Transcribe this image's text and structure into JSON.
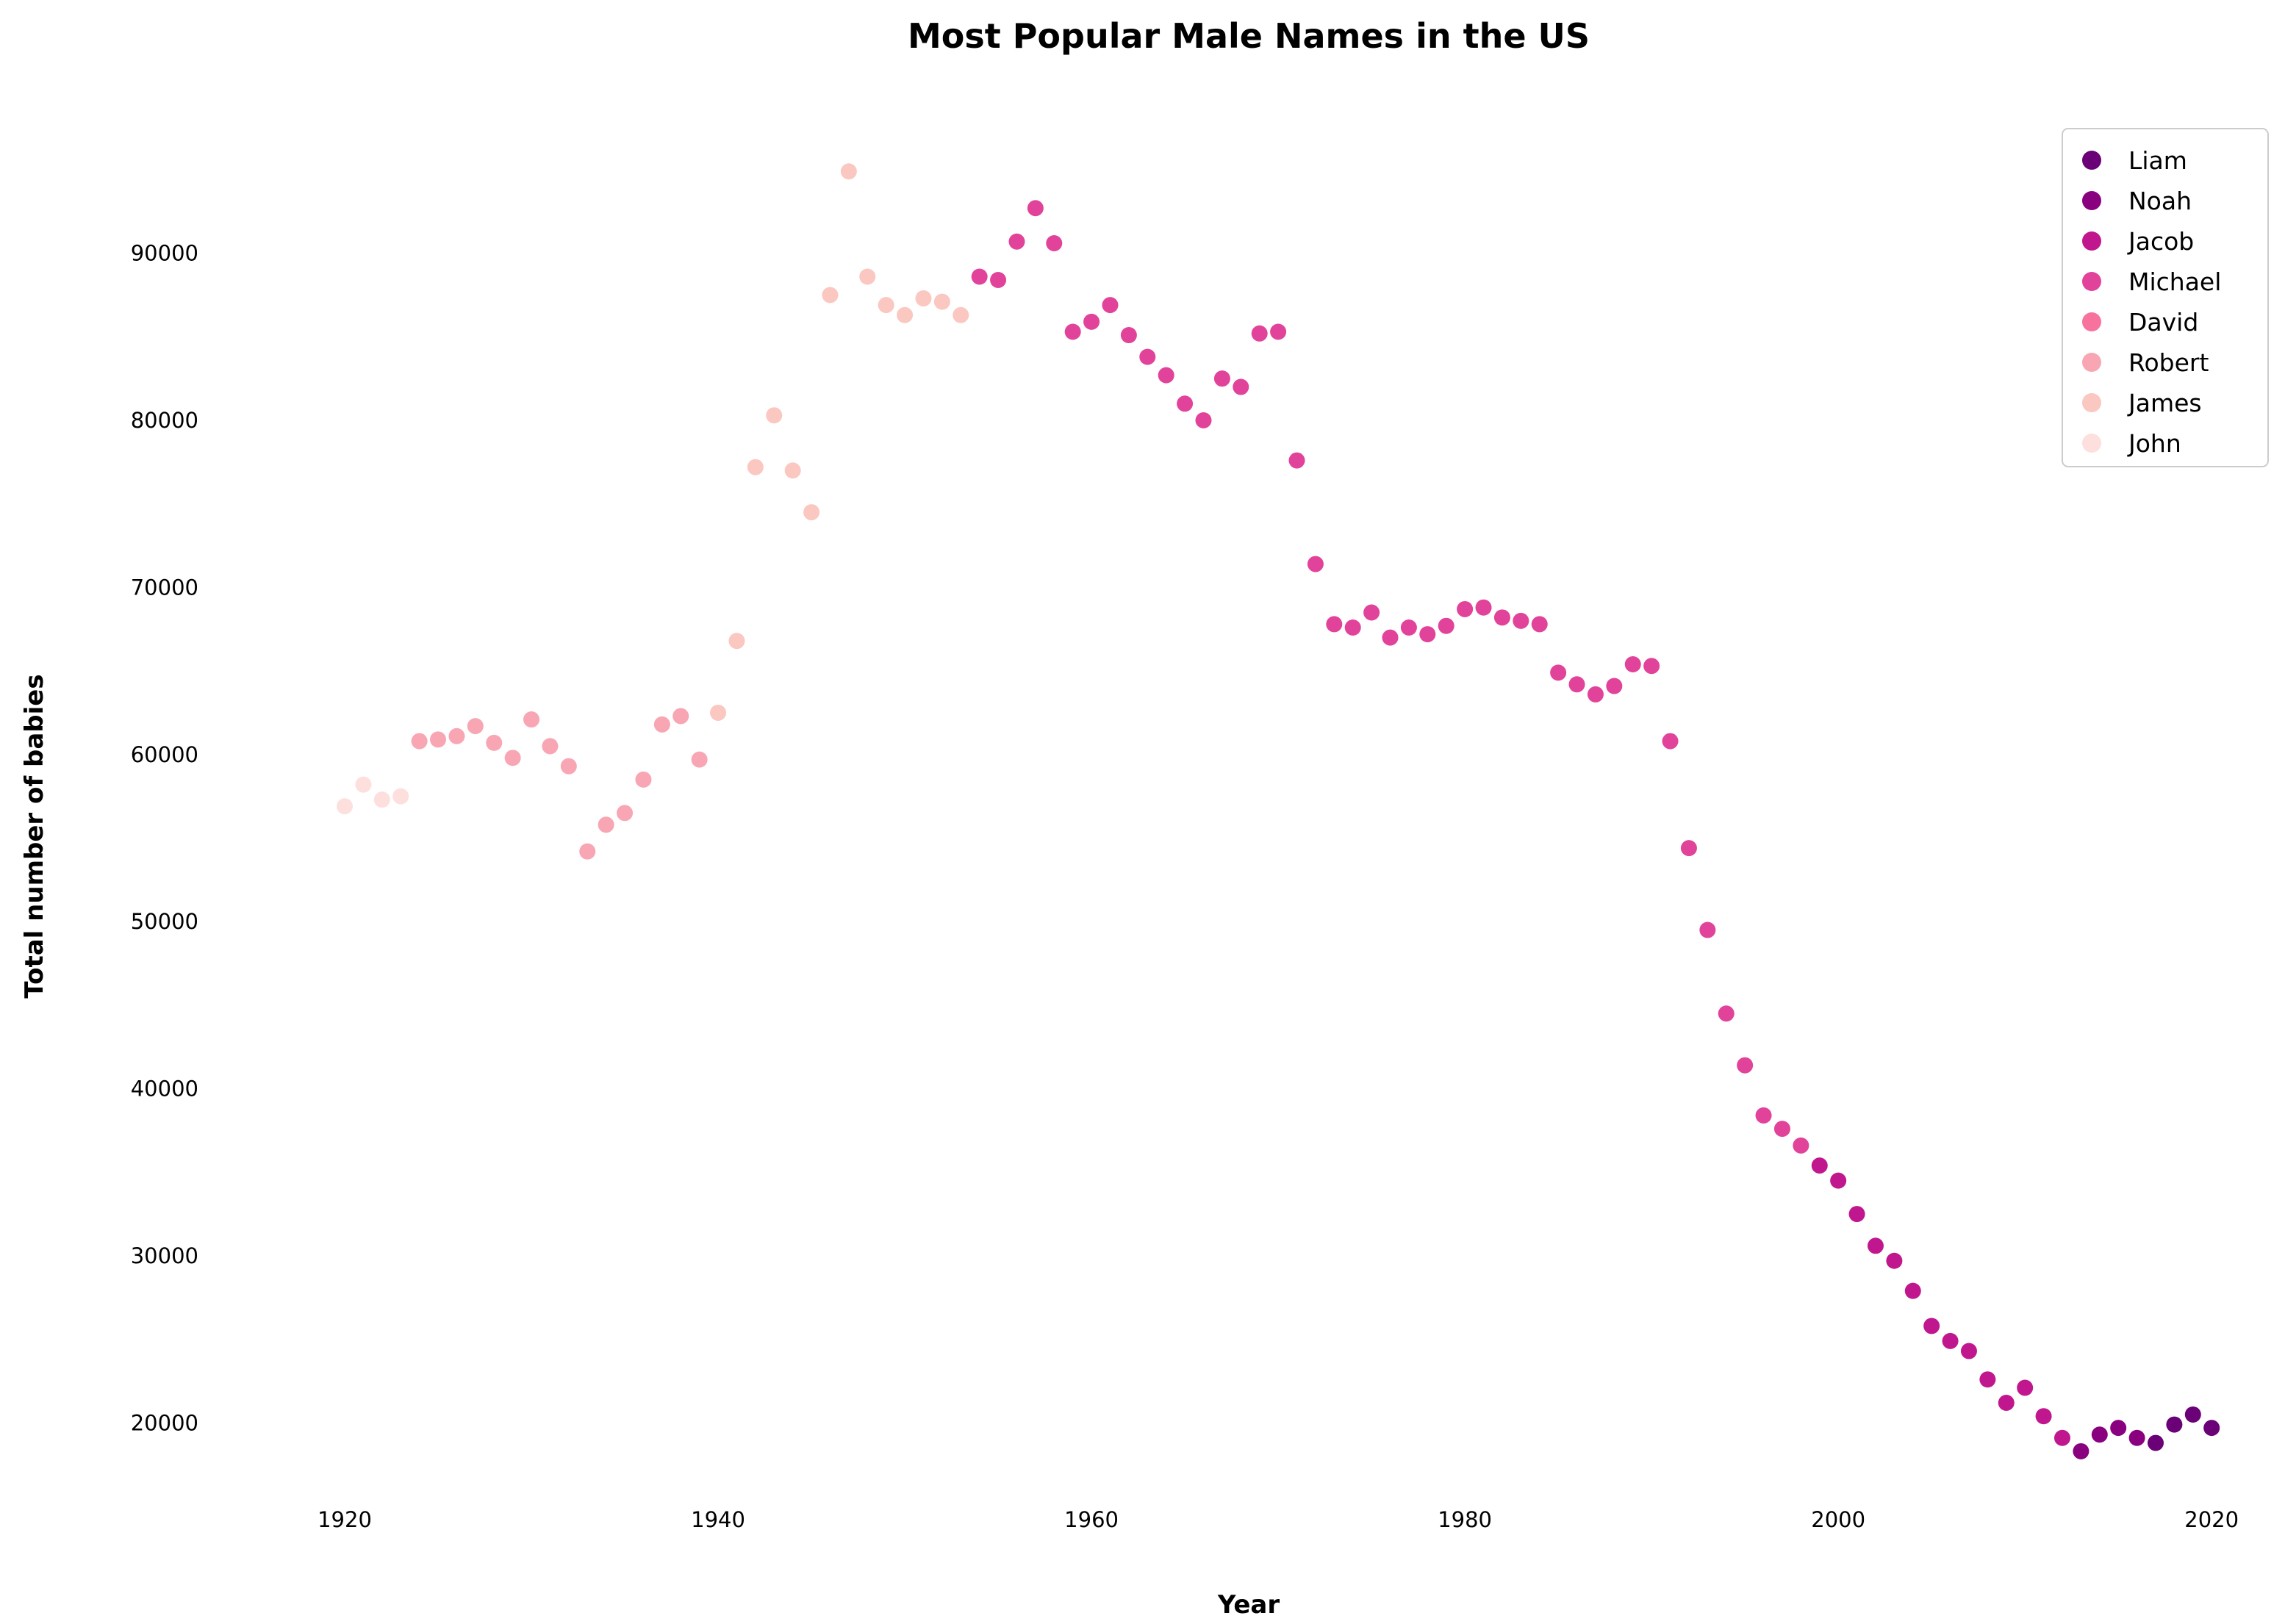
{
  "chart_data": {
    "type": "scatter",
    "title": "Most Popular Male Names in the US",
    "xlabel": "Year",
    "ylabel": "Total number of babies",
    "xlim": [
      1915,
      2022
    ],
    "ylim": [
      15000,
      99000
    ],
    "x_ticks": [
      1920,
      1940,
      1960,
      1980,
      2000,
      2020
    ],
    "y_ticks": [
      20000,
      30000,
      40000,
      50000,
      60000,
      70000,
      80000,
      90000
    ],
    "grid": false,
    "legend_position": "top-right",
    "series": [
      {
        "name": "Liam",
        "color": "#6a0177",
        "x": [
          2017,
          2018,
          2019,
          2020
        ],
        "y": [
          18800,
          19900,
          20500,
          19700
        ]
      },
      {
        "name": "Noah",
        "color": "#8a0180",
        "x": [
          2013,
          2014,
          2015,
          2016
        ],
        "y": [
          18300,
          19300,
          19700,
          19100
        ]
      },
      {
        "name": "Jacob",
        "color": "#c0178f",
        "x": [
          1999,
          2000,
          2001,
          2002,
          2003,
          2004,
          2005,
          2006,
          2007,
          2008,
          2009,
          2010,
          2011,
          2012
        ],
        "y": [
          35400,
          34500,
          32500,
          30600,
          29700,
          27900,
          25800,
          24900,
          24300,
          22600,
          21200,
          22100,
          20400,
          19100
        ]
      },
      {
        "name": "Michael",
        "color": "#e2439a",
        "x": [
          1954,
          1955,
          1956,
          1957,
          1958,
          1959,
          1960,
          1961,
          1962,
          1963,
          1964,
          1965,
          1966,
          1967,
          1968,
          1969,
          1970,
          1971,
          1972,
          1973,
          1974,
          1975,
          1976,
          1977,
          1978,
          1979,
          1980,
          1981,
          1982,
          1983,
          1984,
          1985,
          1986,
          1987,
          1988,
          1989,
          1990,
          1991,
          1992,
          1993,
          1994,
          1995,
          1996,
          1997,
          1998
        ],
        "y": [
          88600,
          88400,
          90700,
          92700,
          90600,
          85300,
          85900,
          86900,
          85100,
          83800,
          82700,
          81000,
          80000,
          82500,
          82000,
          85200,
          85300,
          77600,
          71400,
          67800,
          67600,
          68500,
          67000,
          67600,
          67200,
          67700,
          68700,
          68800,
          68200,
          68000,
          67800,
          64900,
          64200,
          63600,
          64100,
          65400,
          65300,
          60800,
          54400,
          49500,
          44500,
          41400,
          38400,
          37600,
          36600
        ]
      },
      {
        "name": "David",
        "color": "#f7739e",
        "x": [],
        "y": []
      },
      {
        "name": "Robert",
        "color": "#f8a6b3",
        "x": [
          1924,
          1925,
          1926,
          1927,
          1928,
          1929,
          1930,
          1931,
          1932,
          1933,
          1934,
          1935,
          1936,
          1937,
          1938,
          1939
        ],
        "y": [
          60800,
          60900,
          61100,
          61700,
          60700,
          59800,
          62100,
          60500,
          59300,
          54200,
          55800,
          56500,
          58500,
          61800,
          62300,
          59700
        ]
      },
      {
        "name": "James",
        "color": "#fac8c1",
        "x": [
          1940,
          1941,
          1942,
          1943,
          1944,
          1945,
          1946,
          1947,
          1948,
          1949,
          1950,
          1951,
          1952,
          1953
        ],
        "y": [
          62500,
          66800,
          77200,
          80300,
          77000,
          74500,
          87500,
          94900,
          88600,
          86900,
          86300,
          87300,
          87100,
          86300
        ]
      },
      {
        "name": "John",
        "color": "#fde0dd",
        "x": [
          1920,
          1921,
          1922,
          1923
        ],
        "y": [
          56900,
          58200,
          57300,
          57500
        ]
      }
    ]
  }
}
